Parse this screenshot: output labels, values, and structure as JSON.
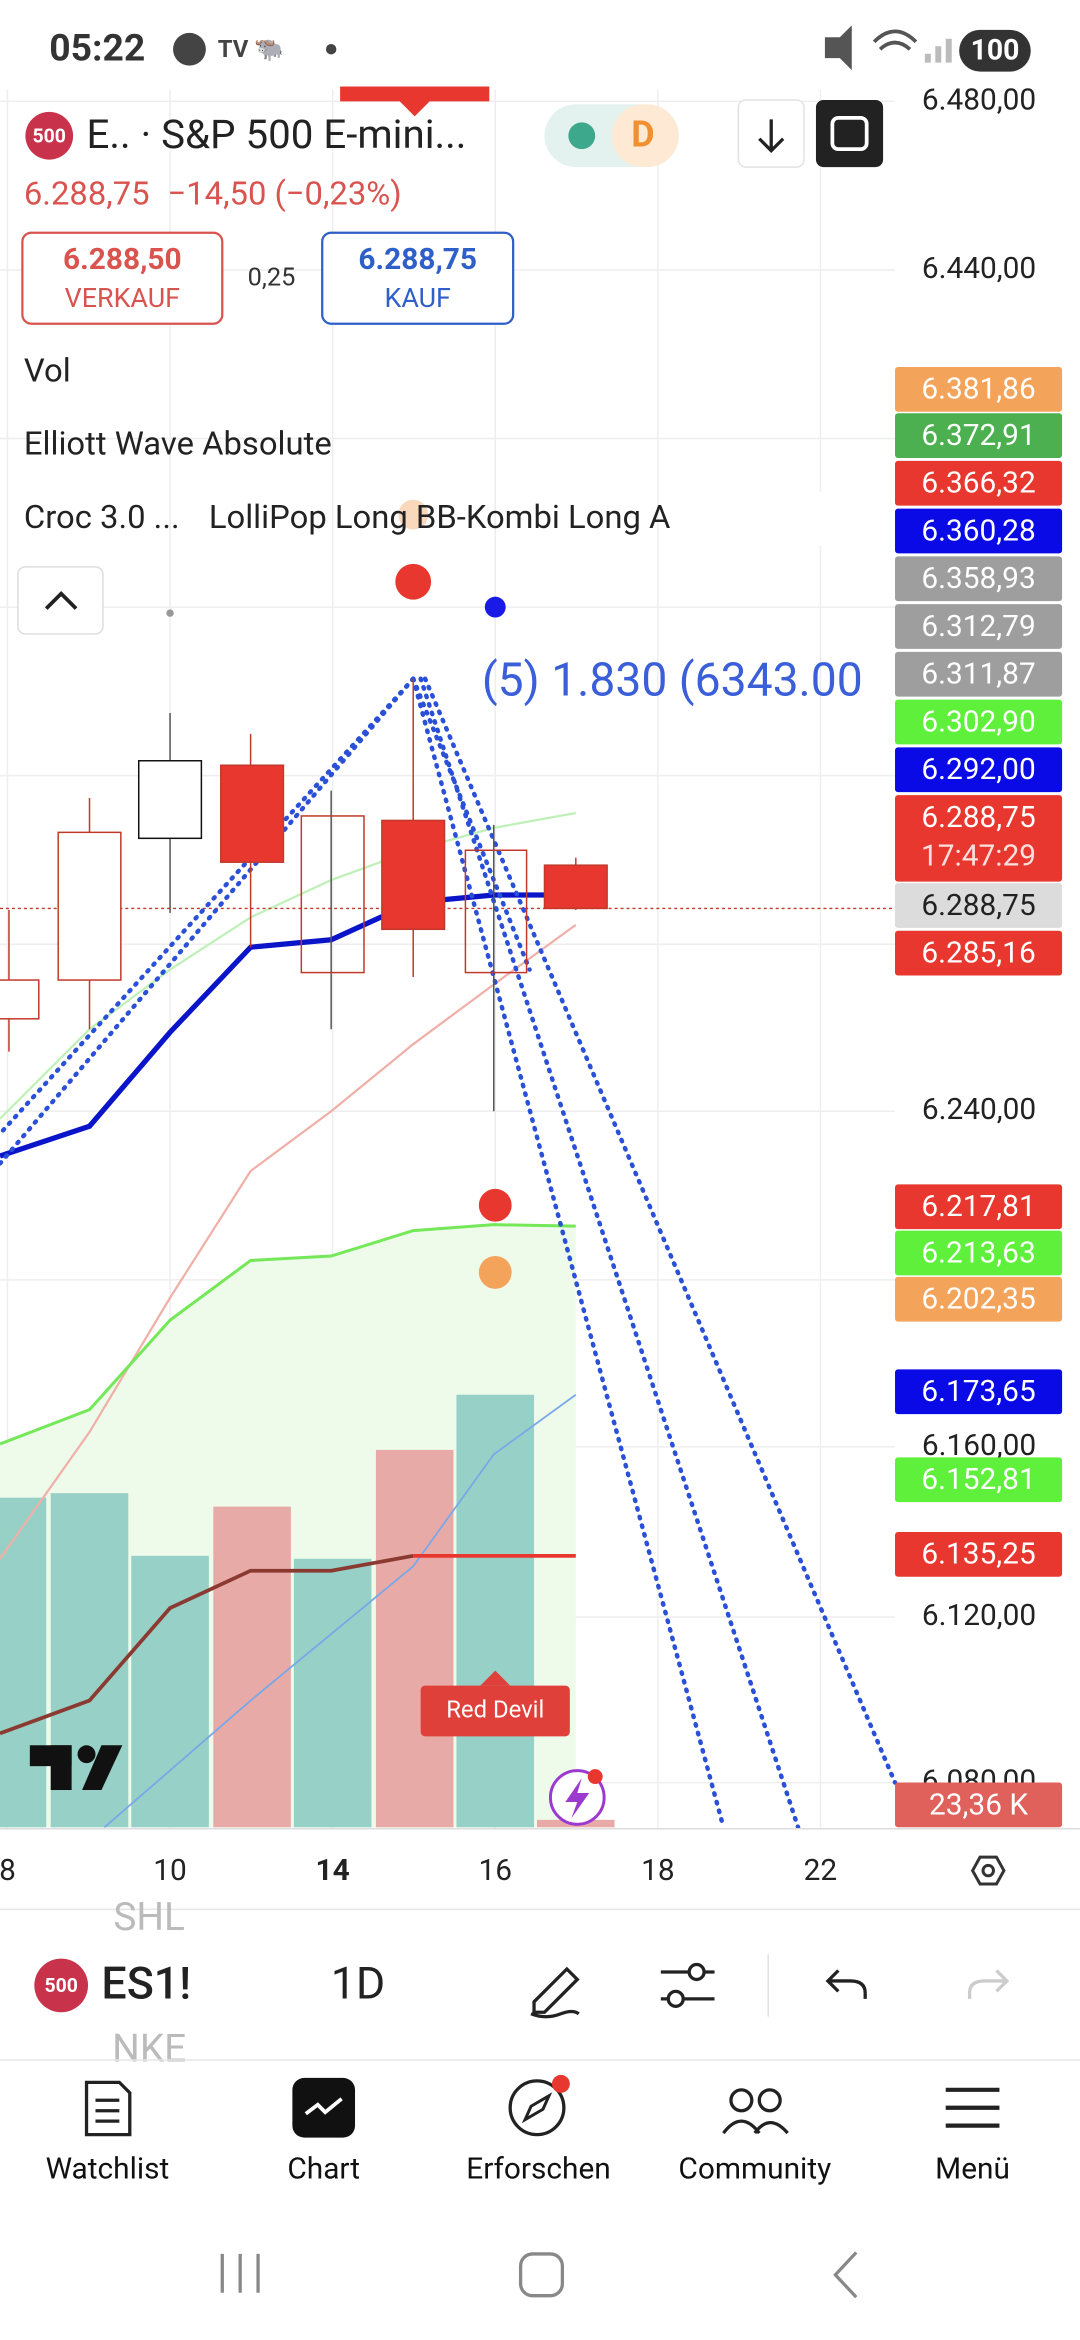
{
  "status_bar": {
    "time": "05:22",
    "battery": "100"
  },
  "header": {
    "badge": "500",
    "symbol": "E.. · S&P 500 E-mini...",
    "interval": "D",
    "quote": "6.288,75",
    "change": "−14,50 (−0,23%)",
    "sell_price": "6.288,50",
    "sell_label": "VERKAUF",
    "spread": "0,25",
    "buy_price": "6.288,75",
    "buy_label": "KAUF"
  },
  "indicators": [
    "Vol",
    "Elliott Wave Absolute",
    "Croc 3.0 ...",
    "LolliPop Long BB-Kombi Long A"
  ],
  "annotations": {
    "wave": "(5) 1.830 (6343.00",
    "signal": "Red Devil"
  },
  "price_axis": [
    "6.480,00",
    "6.440,00",
    "6.240,00",
    "6.160,00",
    "6.120,00",
    "6.080,00"
  ],
  "price_tags": [
    {
      "label": "6.381,86",
      "color": "#f4a35a"
    },
    {
      "label": "6.372,91",
      "color": "#4caf50"
    },
    {
      "label": "6.366,32",
      "color": "#e8372e"
    },
    {
      "label": "6.360,28",
      "color": "#0a0ae6"
    },
    {
      "label": "6.358,93",
      "color": "#9e9e9e"
    },
    {
      "label": "6.312,79",
      "color": "#9e9e9e"
    },
    {
      "label": "6.311,87",
      "color": "#9e9e9e"
    },
    {
      "label": "6.302,90",
      "color": "#5ff03c"
    },
    {
      "label": "6.292,00",
      "color": "#0a0ae6"
    },
    {
      "label": "6.288,75",
      "color": "#e8372e"
    },
    {
      "label": "6.288,75",
      "color": "#dcdcdc"
    },
    {
      "label": "6.285,16",
      "color": "#e8372e"
    },
    {
      "label": "6.217,81",
      "color": "#e8372e"
    },
    {
      "label": "6.213,63",
      "color": "#5ff03c"
    },
    {
      "label": "6.202,35",
      "color": "#f4a35a"
    },
    {
      "label": "6.173,65",
      "color": "#0a0ae6"
    },
    {
      "label": "6.152,81",
      "color": "#5ff03c"
    },
    {
      "label": "6.135,25",
      "color": "#e8372e"
    },
    {
      "label": "23,36 K",
      "color": "#e0605c"
    }
  ],
  "countdown": "17:47:29",
  "time_axis": [
    "8",
    "10",
    "14",
    "16",
    "18",
    "22"
  ],
  "toolbar": {
    "badge": "500",
    "symbol": "ES1!",
    "interval": "1D",
    "watch_above": "SHL",
    "watch_below": "NKE"
  },
  "nav": [
    "Watchlist",
    "Chart",
    "Erforschen",
    "Community",
    "Menü"
  ]
}
